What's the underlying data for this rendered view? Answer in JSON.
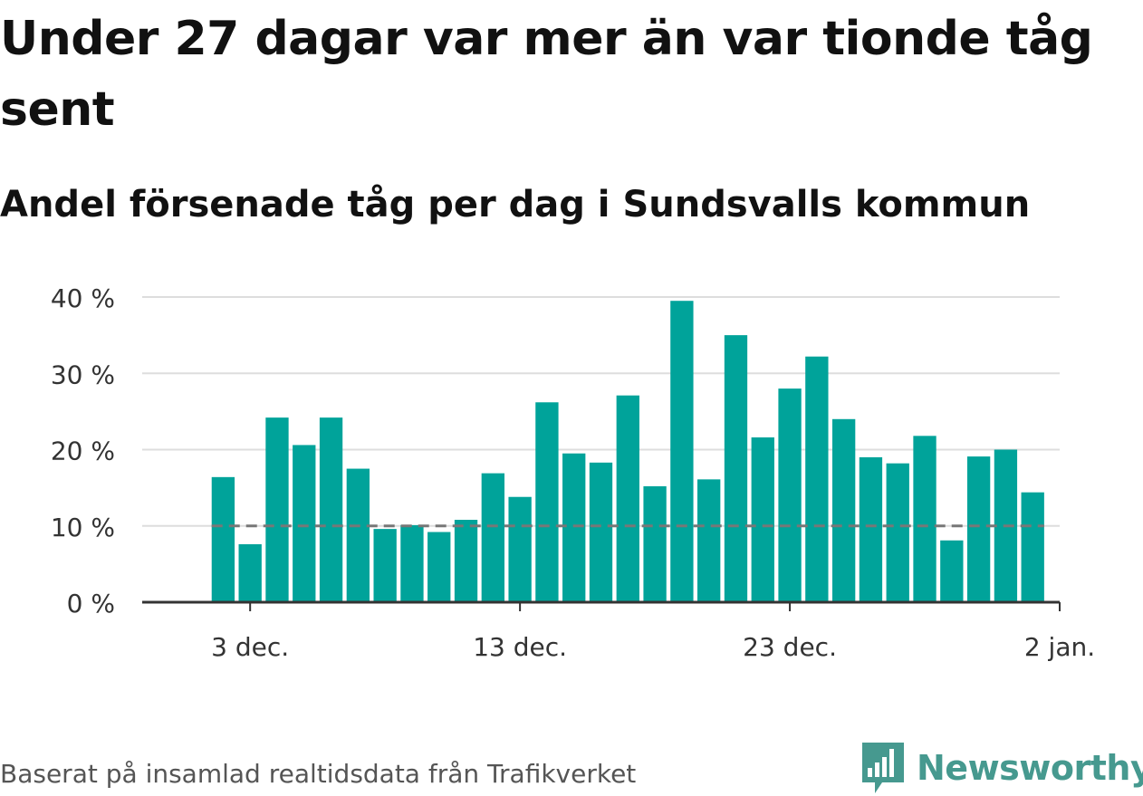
{
  "title": "Under 27 dagar var mer än var tionde tåg sent",
  "subtitle": "Andel försenade tåg per dag i Sundsvalls kommun",
  "source": "Baserat på insamlad realtidsdata från Trafikverket",
  "logo_text": "Newsworthy",
  "colors": {
    "bar": "#00a39a",
    "reference": "#777777",
    "grid": "#dddddd",
    "axis": "#333333",
    "logo": "#46998f"
  },
  "chart_data": {
    "type": "bar",
    "x_axis": {
      "type": "date",
      "range": [
        "2020-11-29",
        "2021-01-02"
      ],
      "ticks": [
        {
          "date": "2020-12-03",
          "label": "3 dec."
        },
        {
          "date": "2020-12-13",
          "label": "13 dec."
        },
        {
          "date": "2020-12-23",
          "label": "23 dec."
        },
        {
          "date": "2021-01-02",
          "label": "2 jan."
        }
      ]
    },
    "y_axis": {
      "range": [
        0,
        40
      ],
      "ticks": [
        0,
        10,
        20,
        30,
        40
      ],
      "tick_labels": [
        "0 %",
        "10 %",
        "20 %",
        "30 %",
        "40 %"
      ]
    },
    "grid": true,
    "reference_line": {
      "y": 10,
      "style": "dashed"
    },
    "x": [
      "2020-12-02",
      "2020-12-03",
      "2020-12-04",
      "2020-12-05",
      "2020-12-06",
      "2020-12-07",
      "2020-12-08",
      "2020-12-09",
      "2020-12-10",
      "2020-12-11",
      "2020-12-12",
      "2020-12-13",
      "2020-12-14",
      "2020-12-15",
      "2020-12-16",
      "2020-12-17",
      "2020-12-18",
      "2020-12-19",
      "2020-12-20",
      "2020-12-21",
      "2020-12-22",
      "2020-12-23",
      "2020-12-24",
      "2020-12-25",
      "2020-12-26",
      "2020-12-27",
      "2020-12-28",
      "2020-12-29",
      "2020-12-30",
      "2020-12-31",
      "2021-01-01"
    ],
    "values": [
      16.4,
      7.6,
      24.2,
      20.6,
      24.2,
      17.5,
      9.6,
      10.1,
      9.2,
      10.8,
      16.9,
      13.8,
      26.2,
      19.5,
      18.3,
      27.1,
      15.2,
      39.5,
      16.1,
      35.0,
      21.6,
      28.0,
      32.2,
      24.0,
      19.0,
      18.2,
      21.8,
      8.1,
      19.1,
      20.0,
      14.4
    ]
  }
}
